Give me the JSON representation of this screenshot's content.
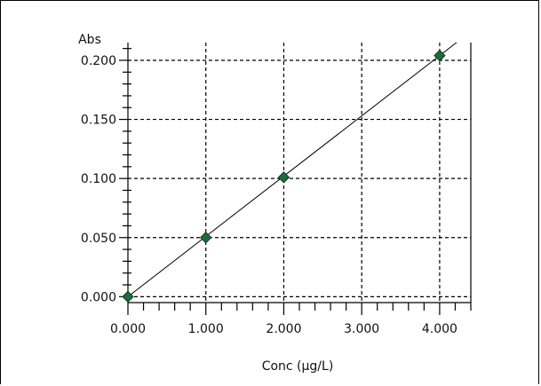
{
  "chart_data": {
    "type": "scatter",
    "title": "",
    "xlabel": "Conc (µg/L)",
    "ylabel": "Abs",
    "xlim": [
      0,
      4.4
    ],
    "ylim": [
      -0.005,
      0.215
    ],
    "x_ticks": [
      0.0,
      1.0,
      2.0,
      3.0,
      4.0
    ],
    "x_tick_labels": [
      "0.000",
      "1.000",
      "2.000",
      "3.000",
      "4.000"
    ],
    "x_minor_step": 0.2,
    "y_ticks": [
      0.0,
      0.05,
      0.1,
      0.15,
      0.2
    ],
    "y_tick_labels": [
      "0.000",
      "0.050",
      "0.100",
      "0.150",
      "0.200"
    ],
    "y_minor_step": 0.01,
    "grid": true,
    "grid_style": "dashed",
    "series": [
      {
        "marker": "diamond",
        "marker_color": "#1f6b3a",
        "x": [
          0.0,
          1.0,
          2.0,
          4.0
        ],
        "y": [
          0.0,
          0.05,
          0.101,
          0.204
        ]
      }
    ],
    "fit_line": {
      "x": [
        0.0,
        4.4
      ],
      "y": [
        0.0,
        0.2244
      ]
    }
  }
}
